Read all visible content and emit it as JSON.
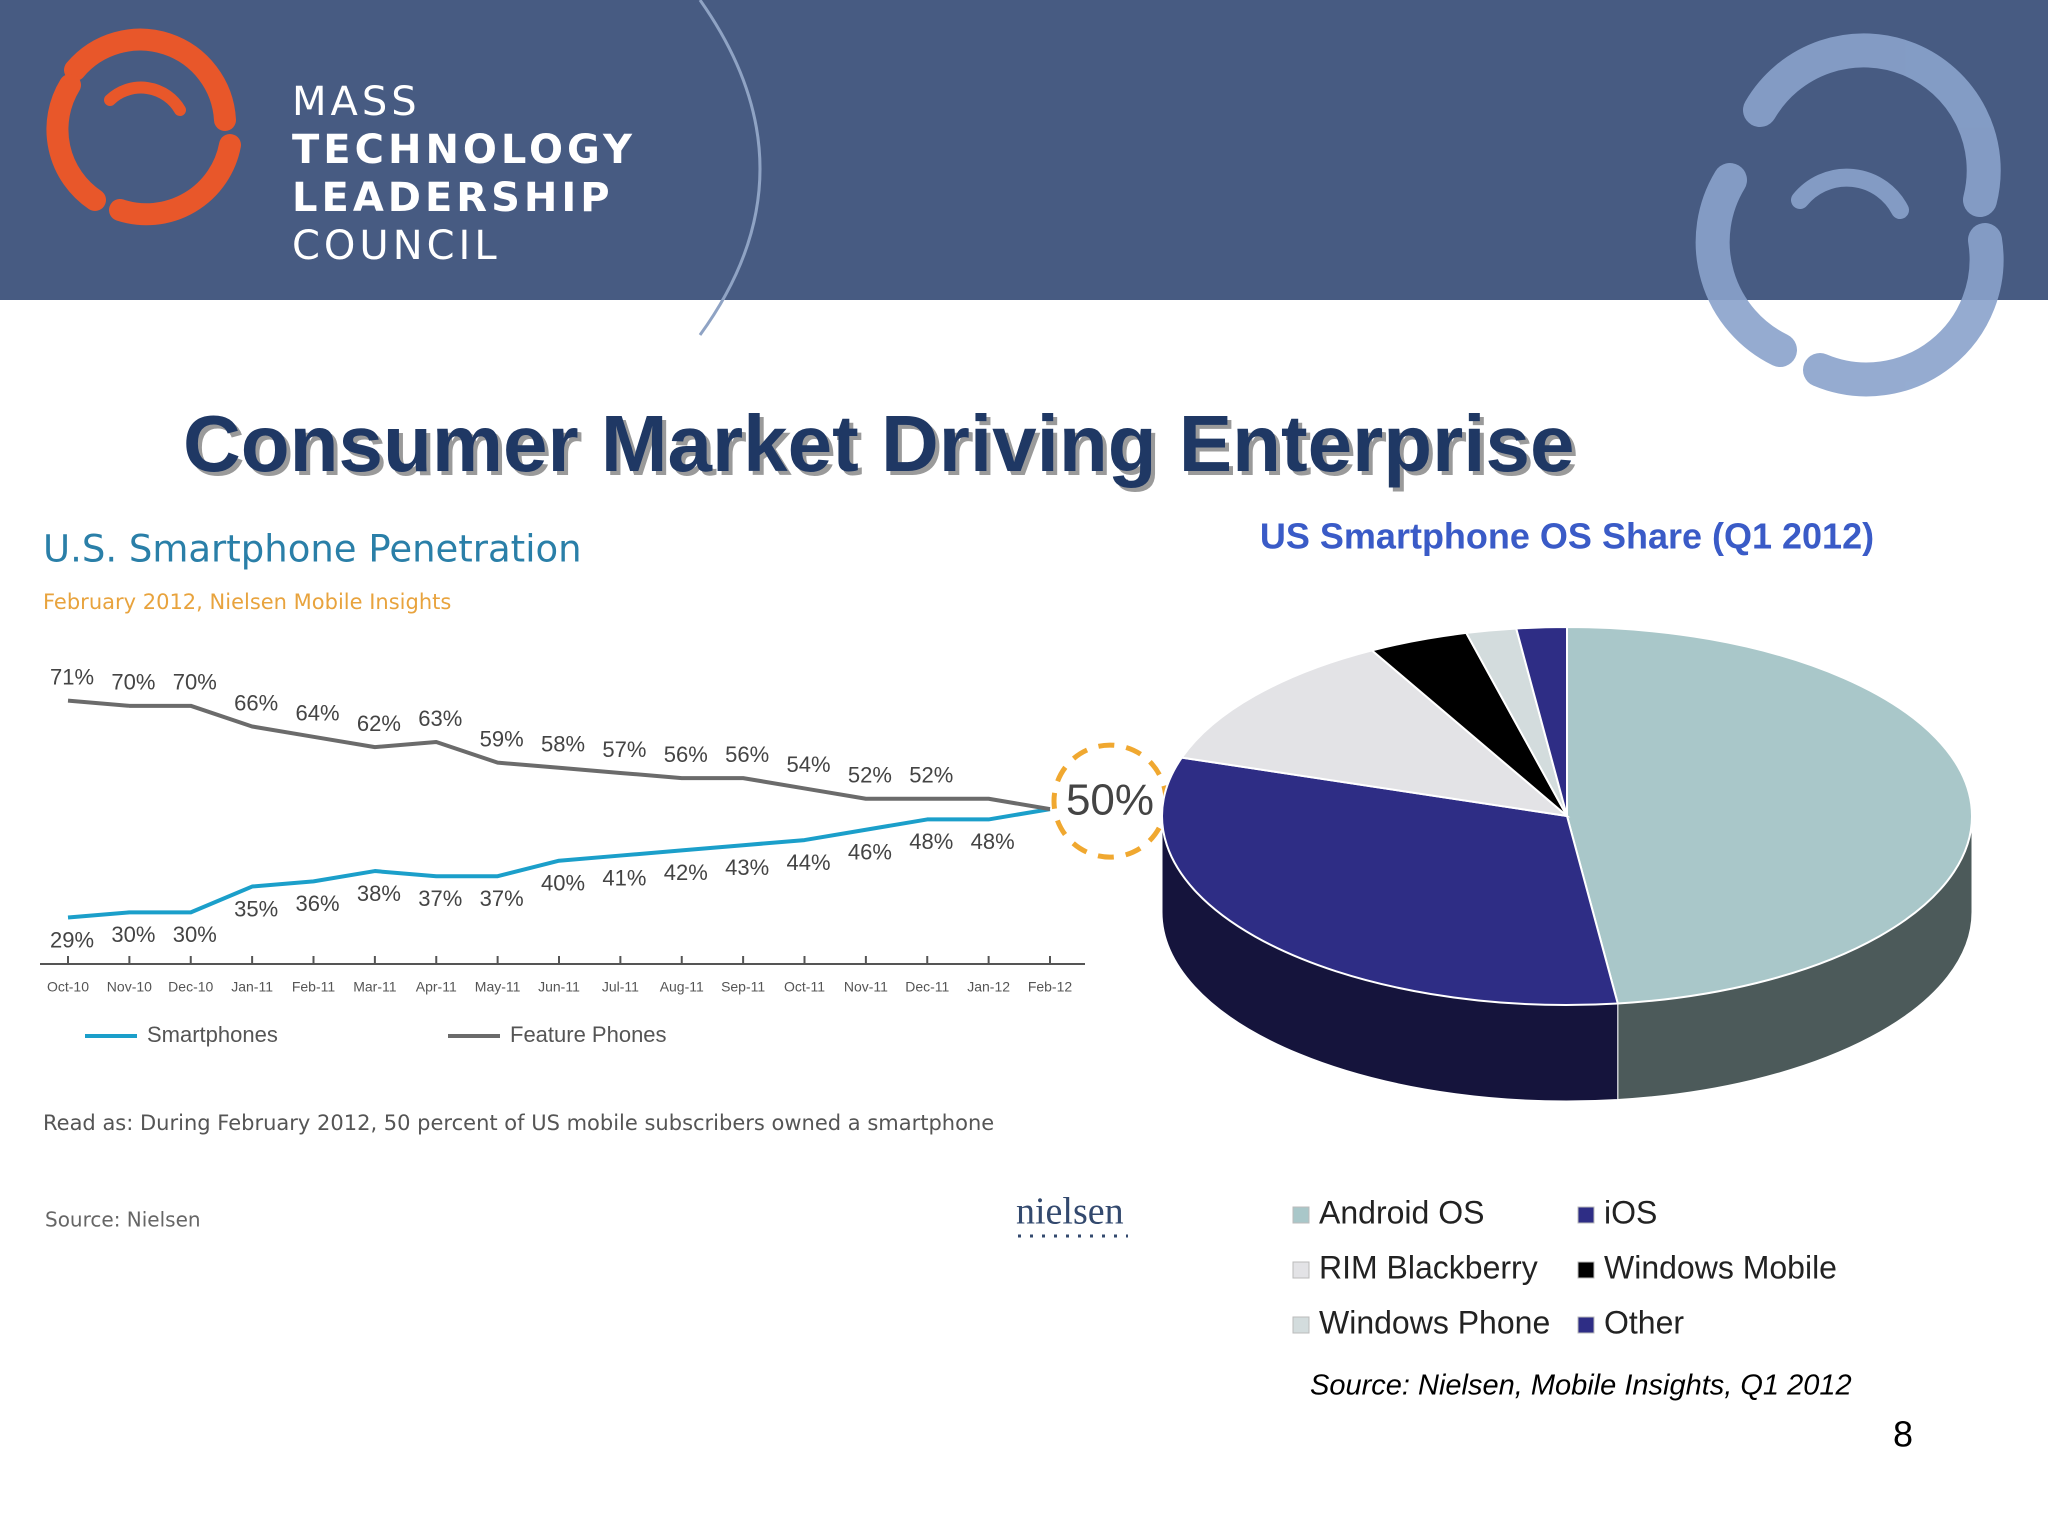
{
  "header": {
    "org_lines": [
      "MASS",
      "TECHNOLOGY",
      "LEADERSHIP",
      "COUNCIL"
    ]
  },
  "title": "Consumer Market Driving Enterprise",
  "page_number": "8",
  "chart_data": [
    {
      "type": "line",
      "title": "U.S. Smartphone Penetration",
      "subtitle": "February 2012, Nielsen Mobile Insights",
      "note": "Read as: During February 2012, 50 percent of US mobile subscribers owned a smartphone",
      "source": "Source: Nielsen",
      "logo": "nielsen",
      "categories": [
        "Oct-10",
        "Nov-10",
        "Dec-10",
        "Jan-11",
        "Feb-11",
        "Mar-11",
        "Apr-11",
        "May-11",
        "Jun-11",
        "Jul-11",
        "Aug-11",
        "Sep-11",
        "Oct-11",
        "Nov-11",
        "Dec-11",
        "Jan-12",
        "Feb-12"
      ],
      "ylim": [
        20,
        75
      ],
      "series": [
        {
          "name": "Smartphones",
          "color": "#1b9fca",
          "values": [
            29,
            30,
            30,
            35,
            36,
            38,
            37,
            37,
            40,
            41,
            42,
            43,
            44,
            46,
            48,
            48,
            50
          ],
          "value_labels": [
            "29%",
            "30%",
            "30%",
            "35%",
            "36%",
            "38%",
            "37%",
            "37%",
            "40%",
            "41%",
            "42%",
            "43%",
            "44%",
            "46%",
            "48%",
            "48%",
            "50%"
          ]
        },
        {
          "name": "Feature Phones",
          "color": "#6b6b6b",
          "values": [
            71,
            70,
            70,
            66,
            64,
            62,
            63,
            59,
            58,
            57,
            56,
            56,
            54,
            52,
            52,
            52,
            50
          ],
          "value_labels": [
            "71%",
            "70%",
            "70%",
            "66%",
            "64%",
            "62%",
            "63%",
            "59%",
            "58%",
            "57%",
            "56%",
            "56%",
            "54%",
            "52%",
            "52%",
            null,
            null
          ]
        }
      ]
    },
    {
      "type": "pie",
      "title": "US Smartphone OS Share (Q1 2012)",
      "source": "Source: Nielsen, Mobile Insights, Q1 2012",
      "categories": [
        "Android OS",
        "iOS",
        "RIM Blackberry",
        "Windows Mobile",
        "Windows Phone",
        "Other"
      ],
      "values": [
        48,
        32,
        12,
        4,
        2,
        2
      ],
      "colors": [
        "#a9c7c9",
        "#2e2d85",
        "#e3e3e6",
        "#000000",
        "#d3dcdd",
        "#2e2d85"
      ]
    }
  ]
}
